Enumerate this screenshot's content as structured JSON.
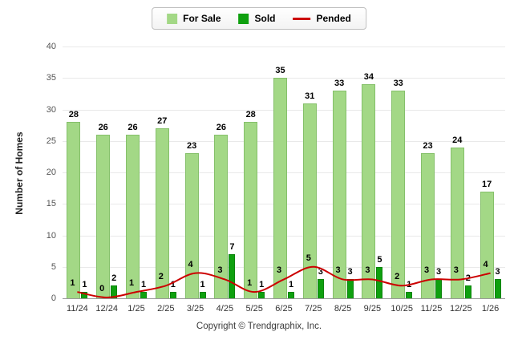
{
  "footer": "Copyright © Trendgraphix, Inc.",
  "chart_data": {
    "type": "bar+line",
    "title": "",
    "xlabel": "",
    "ylabel": "Number of Homes",
    "categories": [
      "11/24",
      "12/24",
      "1/25",
      "2/25",
      "3/25",
      "4/25",
      "5/25",
      "6/25",
      "7/25",
      "8/25",
      "9/25",
      "10/25",
      "11/25",
      "12/25",
      "1/26"
    ],
    "series": [
      {
        "name": "For Sale",
        "type": "bar",
        "color": "#A3D886",
        "values": [
          28,
          26,
          26,
          27,
          23,
          26,
          28,
          35,
          31,
          33,
          34,
          33,
          23,
          24,
          17
        ]
      },
      {
        "name": "Sold",
        "type": "bar",
        "color": "#0FA00F",
        "values": [
          1,
          2,
          1,
          1,
          1,
          7,
          1,
          1,
          3,
          3,
          5,
          1,
          3,
          2,
          3
        ]
      },
      {
        "name": "Pended",
        "type": "line",
        "color": "#CC0000",
        "values": [
          1,
          0,
          1,
          2,
          4,
          3,
          1,
          3,
          5,
          3,
          3,
          2,
          3,
          3,
          4
        ]
      }
    ],
    "ylim": [
      0,
      40
    ],
    "ytick_step": 5,
    "grid": true,
    "legend_position": "top-center"
  }
}
